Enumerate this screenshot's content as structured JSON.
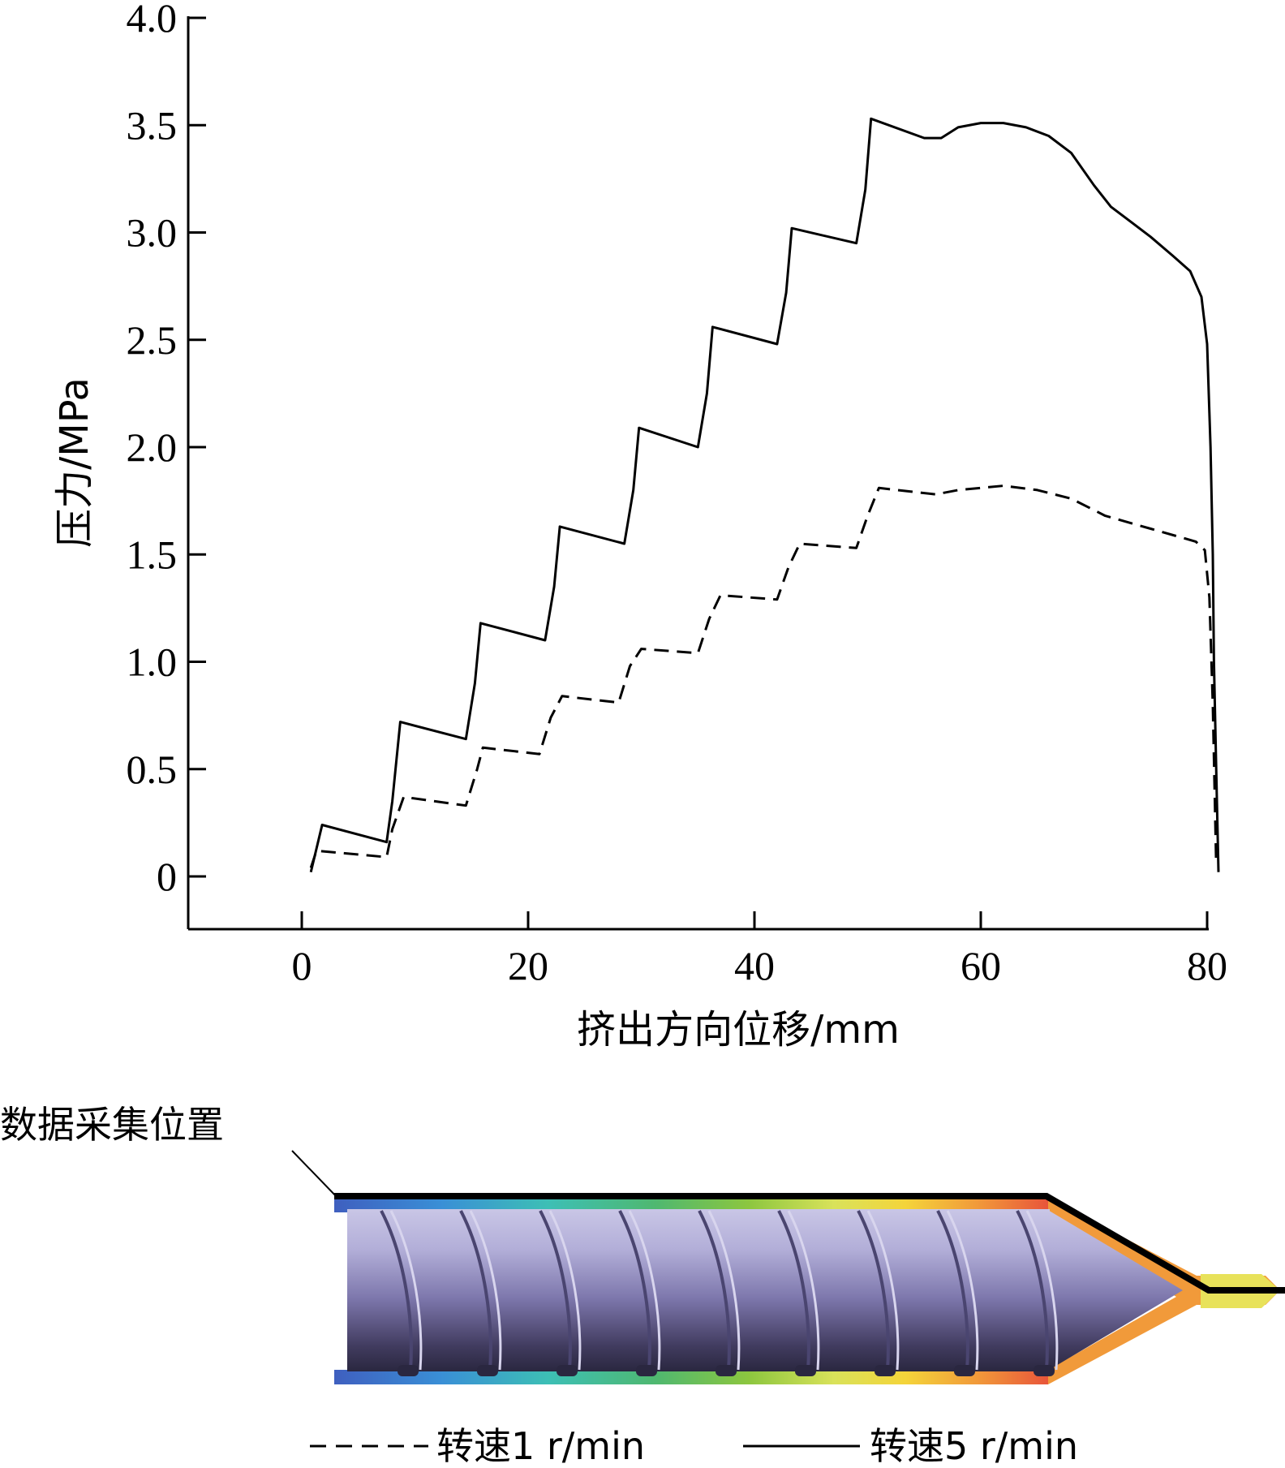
{
  "chart_data": {
    "type": "line",
    "xlabel": "挤出方向位移/mm",
    "ylabel": "压力/MPa",
    "xlim": [
      -10,
      81
    ],
    "ylim": [
      -0.25,
      4.0
    ],
    "xticks": [
      0,
      20,
      40,
      60,
      80
    ],
    "yticks": [
      0,
      0.5,
      1.0,
      1.5,
      2.0,
      2.5,
      3.0,
      3.5,
      4.0
    ],
    "ytick_labels": [
      "0",
      "0.5",
      "1.0",
      "1.5",
      "2.0",
      "2.5",
      "3.0",
      "3.5",
      "4.0"
    ],
    "xtick_labels": [
      "0",
      "20",
      "40",
      "60",
      "80"
    ],
    "grid": false,
    "legend_position": "bottom-center",
    "series": [
      {
        "name": "转速1 r/min",
        "style": "dashed",
        "color": "#000000",
        "x": [
          0.8,
          1.3,
          7.5,
          8.0,
          9.0,
          14.5,
          15.5,
          16.0,
          21.0,
          22.0,
          23.0,
          28.0,
          29.0,
          30.0,
          35.0,
          36.0,
          37.0,
          42.0,
          43.0,
          44.0,
          49.0,
          50.0,
          51.0,
          56.0,
          58.0,
          62.0,
          65.0,
          68.0,
          71.0,
          75.0,
          79.0,
          79.8,
          80.2,
          80.5,
          80.8
        ],
        "y": [
          0.04,
          0.12,
          0.09,
          0.22,
          0.37,
          0.33,
          0.5,
          0.6,
          0.57,
          0.74,
          0.84,
          0.81,
          0.98,
          1.06,
          1.04,
          1.2,
          1.31,
          1.29,
          1.44,
          1.55,
          1.53,
          1.68,
          1.81,
          1.78,
          1.8,
          1.82,
          1.8,
          1.76,
          1.68,
          1.62,
          1.56,
          1.52,
          1.3,
          0.8,
          0.05
        ]
      },
      {
        "name": "转速5 r/min",
        "style": "solid",
        "color": "#000000",
        "x": [
          0.8,
          1.8,
          7.5,
          8.0,
          8.7,
          14.5,
          15.3,
          15.8,
          21.5,
          22.3,
          22.8,
          28.5,
          29.3,
          29.8,
          35.0,
          35.8,
          36.3,
          42.0,
          42.8,
          43.3,
          49.0,
          49.8,
          50.3,
          55.0,
          56.5,
          58.0,
          60.0,
          62.0,
          64.0,
          66.0,
          68.0,
          70.0,
          71.5,
          73.0,
          75.0,
          77.0,
          78.5,
          79.5,
          80.0,
          80.3,
          80.5,
          80.6,
          80.8,
          81.0
        ],
        "y": [
          0.02,
          0.24,
          0.16,
          0.35,
          0.72,
          0.64,
          0.9,
          1.18,
          1.1,
          1.35,
          1.63,
          1.55,
          1.8,
          2.09,
          2.0,
          2.25,
          2.56,
          2.48,
          2.72,
          3.02,
          2.95,
          3.2,
          3.53,
          3.44,
          3.44,
          3.49,
          3.51,
          3.51,
          3.49,
          3.45,
          3.37,
          3.22,
          3.12,
          3.06,
          2.98,
          2.89,
          2.82,
          2.7,
          2.48,
          2.0,
          1.5,
          1.0,
          0.5,
          0.02
        ]
      }
    ]
  },
  "diagram": {
    "callout_label": "数据采集位置",
    "barrel_colors": [
      "#3f5fbf",
      "#3a8fd6",
      "#3dbfb5",
      "#4fb870",
      "#8cc63f",
      "#d9e25a",
      "#f4d43a",
      "#f19a3a",
      "#e8553a"
    ],
    "screw_color": "#8a84b8"
  },
  "legend": {
    "entries": [
      {
        "label": "转速1 r/min",
        "style": "dashed"
      },
      {
        "label": "转速5 r/min",
        "style": "solid"
      }
    ]
  }
}
